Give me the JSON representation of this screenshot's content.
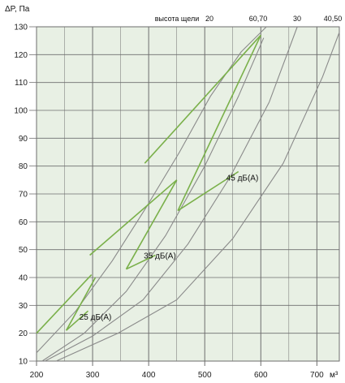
{
  "chart_data": {
    "type": "line",
    "ylabel": "ΔP, Па",
    "xlabel": "м³",
    "x_ticks": [
      "200",
      "300",
      "400",
      "500",
      "600",
      "700"
    ],
    "y_ticks": [
      "10",
      "20",
      "30",
      "40",
      "50",
      "60",
      "70",
      "80",
      "90",
      "100",
      "110",
      "120",
      "130"
    ],
    "xlim": [
      200,
      740
    ],
    "ylim": [
      10,
      130
    ],
    "grid": true,
    "slot_header": "высота щели",
    "slot_labels": [
      "20",
      "60,70",
      "30",
      "40,50"
    ],
    "colors": {
      "background": "#e8f0e4",
      "grid": "#6e6e6e",
      "curve": "#8a8a8a",
      "series": "#7ab04a",
      "axis_ticks": "#222222"
    },
    "series": [
      {
        "name": "20",
        "x": [
          200,
          270,
          335,
          395,
          455,
          510,
          565,
          610
        ],
        "y": [
          13,
          28,
          46,
          65,
          85,
          105,
          121,
          130
        ]
      },
      {
        "name": "60,70",
        "x": [
          210,
          285,
          360,
          430,
          500,
          560,
          605
        ],
        "y": [
          10,
          20,
          35,
          55,
          80,
          105,
          126
        ]
      },
      {
        "name": "30",
        "x": [
          215,
          300,
          390,
          470,
          545,
          615,
          665
        ],
        "y": [
          10,
          19,
          32,
          52,
          76,
          103,
          130
        ]
      },
      {
        "name": "40,50",
        "x": [
          235,
          345,
          450,
          550,
          640,
          710,
          740
        ],
        "y": [
          10,
          20,
          32,
          54,
          81,
          112,
          128
        ]
      }
    ],
    "overlay_segments": [
      {
        "x": [
          200,
          298
        ],
        "y": [
          20,
          41
        ]
      },
      {
        "x": [
          253,
          305
        ],
        "y": [
          21,
          40
        ]
      },
      {
        "x": [
          253,
          292
        ],
        "y": [
          21,
          28
        ]
      },
      {
        "x": [
          295,
          450
        ],
        "y": [
          48,
          75
        ]
      },
      {
        "x": [
          450,
          360
        ],
        "y": [
          75,
          43
        ]
      },
      {
        "x": [
          360,
          412
        ],
        "y": [
          43,
          48
        ]
      },
      {
        "x": [
          393,
          600
        ],
        "y": [
          81,
          127
        ]
      },
      {
        "x": [
          600,
          452
        ],
        "y": [
          127,
          64
        ]
      },
      {
        "x": [
          452,
          560
        ],
        "y": [
          64,
          78
        ]
      }
    ],
    "annotations": [
      {
        "text": "25 дБ(А)",
        "x": 305,
        "y": 26
      },
      {
        "text": "35 дБ(А)",
        "x": 420,
        "y": 48
      },
      {
        "text": "45 дБ(А)",
        "x": 567,
        "y": 76
      }
    ]
  }
}
